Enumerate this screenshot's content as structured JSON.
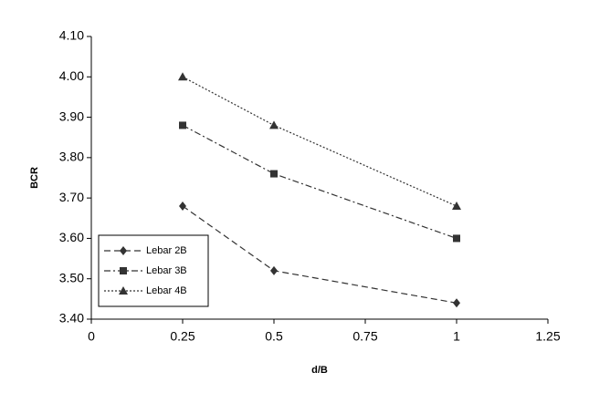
{
  "chart_data": {
    "type": "line",
    "x_label": "d/B",
    "y_label": "BCR",
    "x": [
      0.25,
      0.5,
      1
    ],
    "series": [
      {
        "name": "Lebar 2B",
        "color": "#333333",
        "marker": "diamond",
        "dash": "7,4",
        "values": [
          3.68,
          3.52,
          3.44
        ]
      },
      {
        "name": "Lebar 3B",
        "color": "#333333",
        "marker": "square",
        "dash": "7,3,2,3",
        "values": [
          3.88,
          3.76,
          3.6
        ]
      },
      {
        "name": "Lebar 4B",
        "color": "#333333",
        "marker": "triangle",
        "dash": "2,2",
        "values": [
          4.0,
          3.88,
          3.68
        ]
      }
    ],
    "xlim": [
      0,
      1.25
    ],
    "xticks": [
      0,
      0.25,
      0.5,
      0.75,
      1,
      1.25
    ],
    "ylim": [
      3.4,
      4.1
    ],
    "yticks": [
      {
        "value": 3.4,
        "label": "3.40"
      },
      {
        "value": 3.5,
        "label": "3.50"
      },
      {
        "value": 3.6,
        "label": "3.60"
      },
      {
        "value": 3.7,
        "label": "3.70"
      },
      {
        "value": 3.8,
        "label": "3.80"
      },
      {
        "value": 3.9,
        "label": "3.90"
      },
      {
        "value": 4.0,
        "label": "4.00"
      },
      {
        "value": 4.1,
        "label": "4.10"
      }
    ],
    "grid": false,
    "legend": "lower left"
  }
}
